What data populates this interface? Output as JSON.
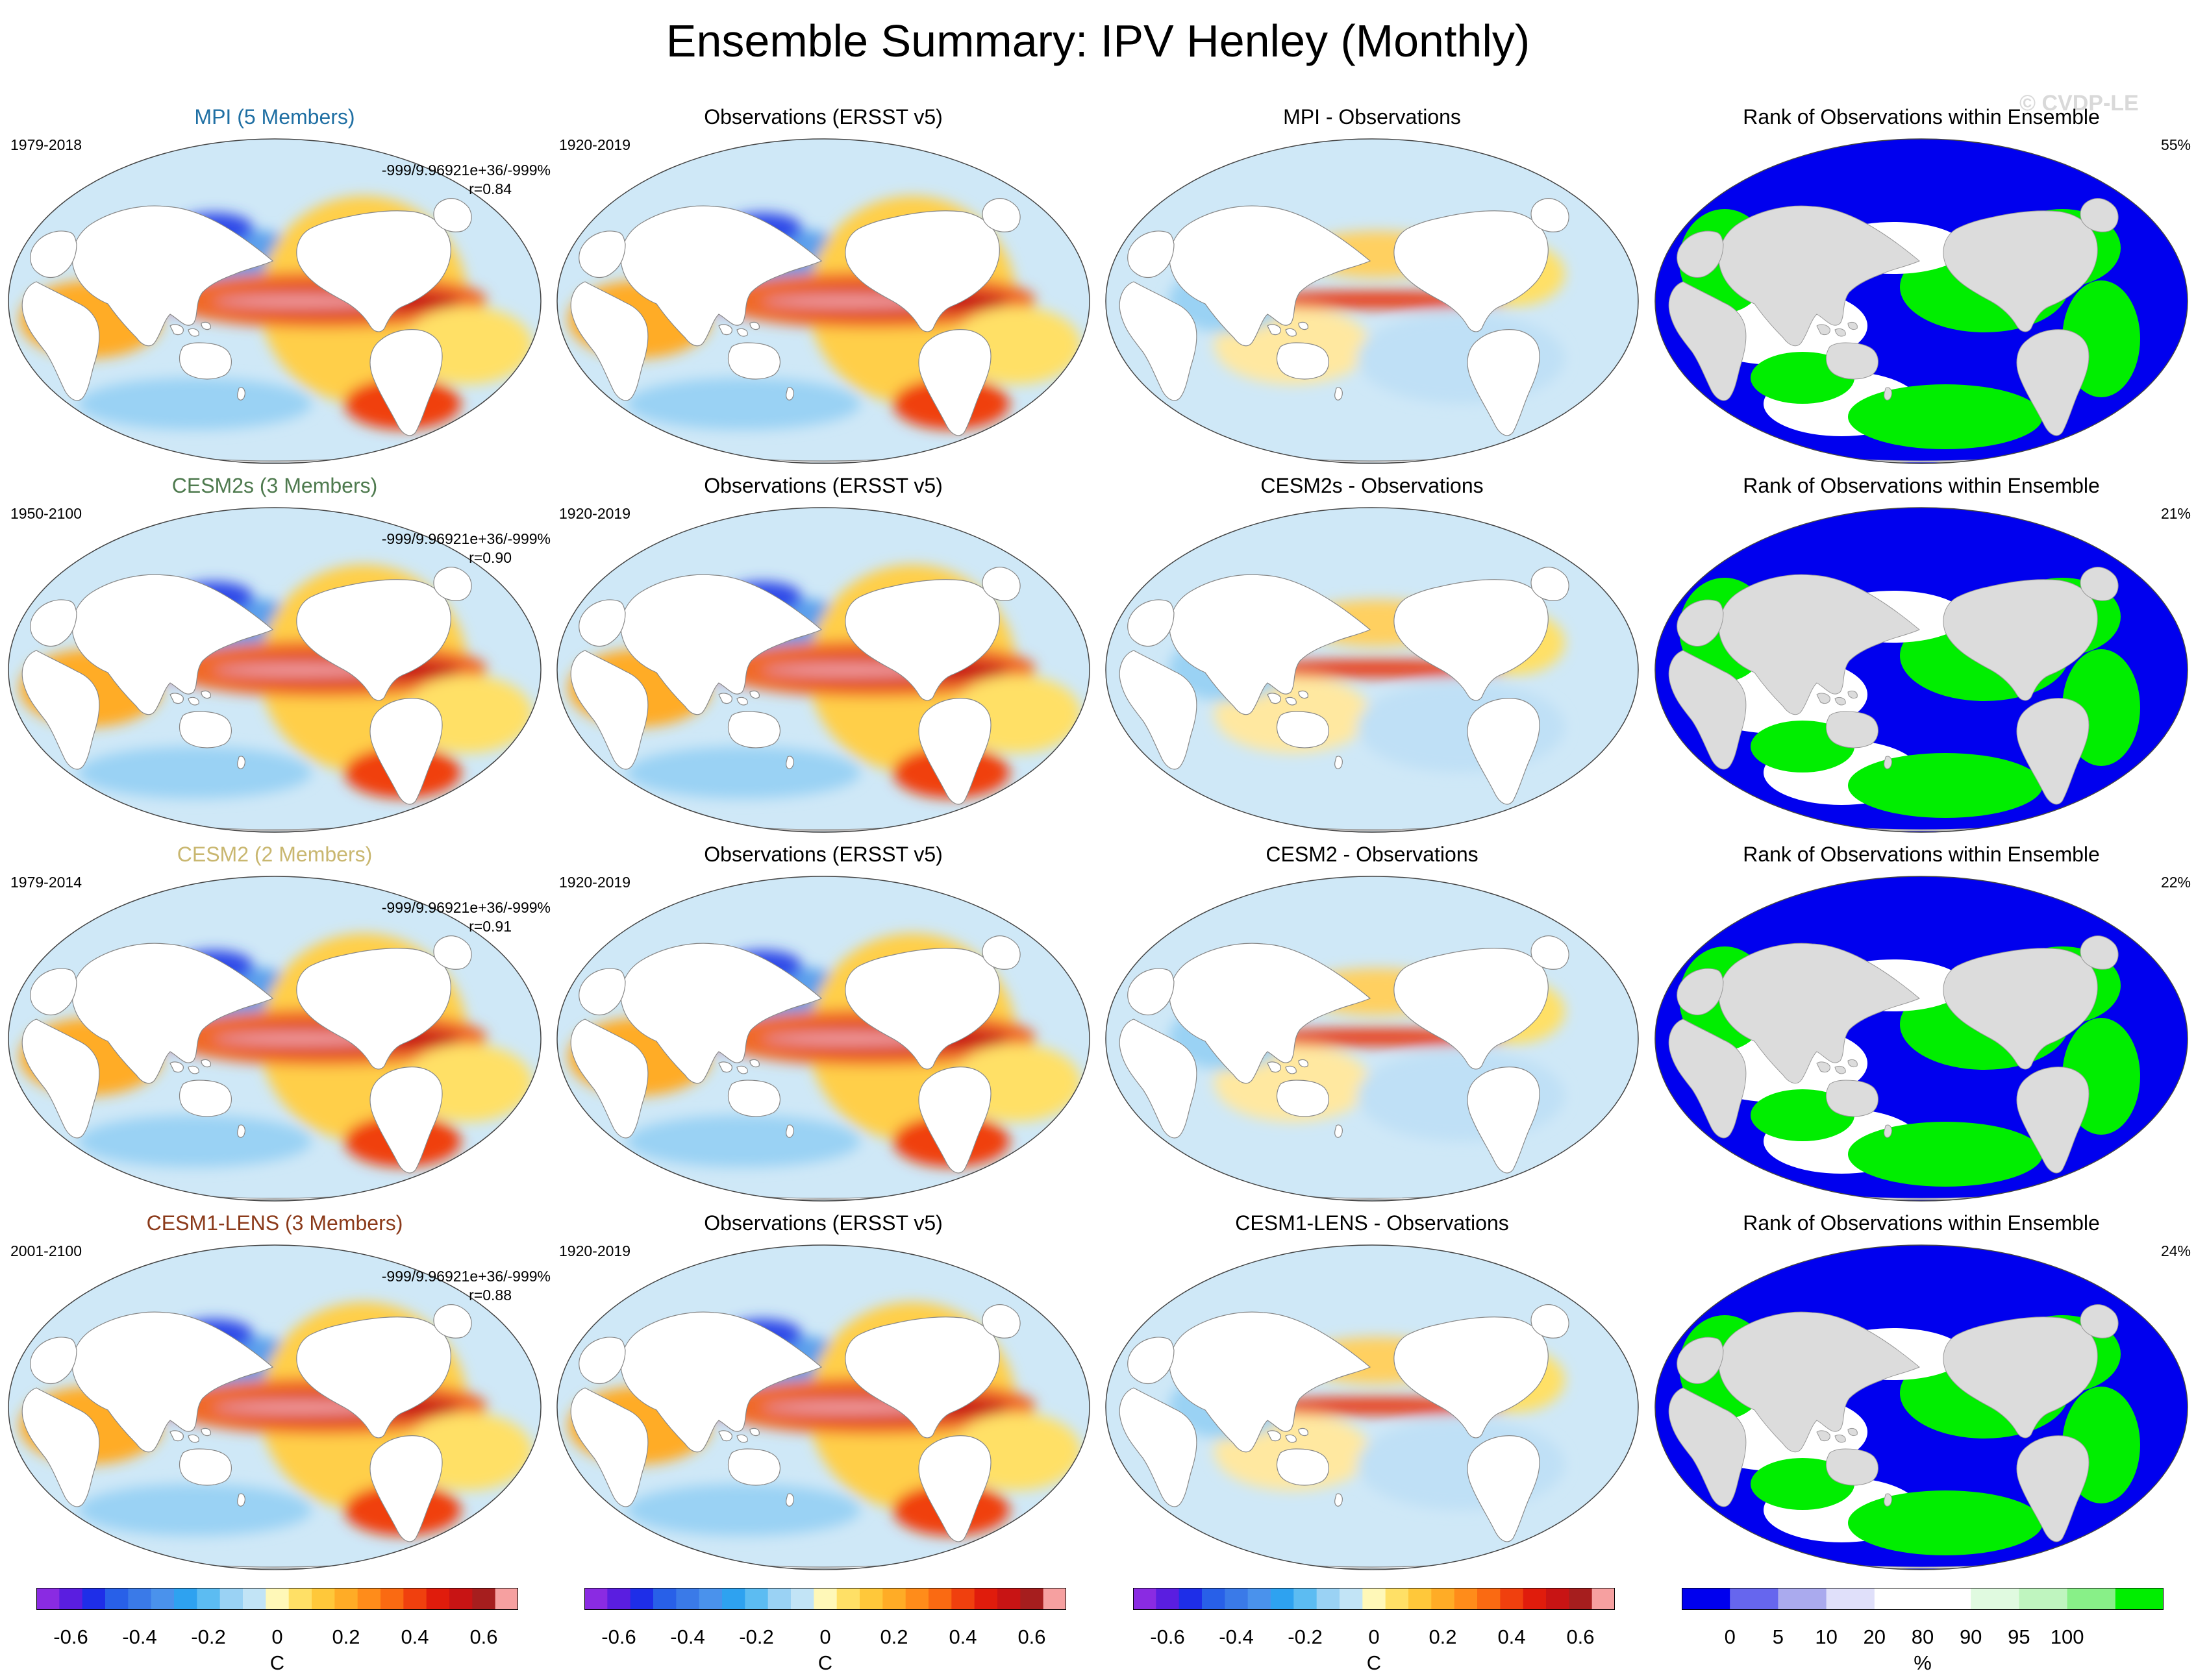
{
  "title": "Ensemble Summary: IPV Henley (Monthly)",
  "watermark": "© CVDP-LE",
  "colors": {
    "mpi": "#1f6fa3",
    "cesm2s": "#4e7a4e",
    "cesm2": "#c9b770",
    "cesm1": "#8b3a1a",
    "ocean_fill": "#cfe8f7",
    "land": "#ffffff",
    "rank_land": "#dcdcdc",
    "rank_blue": "#0000ee",
    "rank_green": "#00ee00"
  },
  "rows": [
    {
      "model": {
        "title": "MPI (5 Members)",
        "title_color": "#1f6fa3",
        "period": "1979-2018",
        "stats_line1": "-999/9.96921e+36/-999%",
        "stats_line2": "r=0.84"
      },
      "obs": {
        "title": "Observations (ERSST v5)",
        "period": "1920-2019"
      },
      "diff": {
        "title": "MPI - Observations"
      },
      "rank": {
        "title": "Rank of Observations within Ensemble",
        "percent": "55%"
      }
    },
    {
      "model": {
        "title": "CESM2s (3 Members)",
        "title_color": "#4e7a4e",
        "period": "1950-2100",
        "stats_line1": "-999/9.96921e+36/-999%",
        "stats_line2": "r=0.90"
      },
      "obs": {
        "title": "Observations (ERSST v5)",
        "period": "1920-2019"
      },
      "diff": {
        "title": "CESM2s - Observations"
      },
      "rank": {
        "title": "Rank of Observations within Ensemble",
        "percent": "21%"
      }
    },
    {
      "model": {
        "title": "CESM2 (2 Members)",
        "title_color": "#c9b770",
        "period": "1979-2014",
        "stats_line1": "-999/9.96921e+36/-999%",
        "stats_line2": "r=0.91"
      },
      "obs": {
        "title": "Observations (ERSST v5)",
        "period": "1920-2019"
      },
      "diff": {
        "title": "CESM2 - Observations"
      },
      "rank": {
        "title": "Rank of Observations within Ensemble",
        "percent": "22%"
      }
    },
    {
      "model": {
        "title": "CESM1-LENS (3 Members)",
        "title_color": "#8b3a1a",
        "period": "2001-2100",
        "stats_line1": "-999/9.96921e+36/-999%",
        "stats_line2": "r=0.88"
      },
      "obs": {
        "title": "Observations (ERSST v5)",
        "period": "1920-2019"
      },
      "diff": {
        "title": "CESM1-LENS - Observations"
      },
      "rank": {
        "title": "Rank of Observations within Ensemble",
        "percent": "24%"
      }
    }
  ],
  "chart_data": {
    "type": "heatmap",
    "projection": "Robinson (Pacific-centered) global maps",
    "panel_layout": "4 rows x 4 columns",
    "columns": [
      "model ensemble mean",
      "observations",
      "model - observations",
      "rank of observations"
    ],
    "colorbars": {
      "temperature": {
        "unit": "C",
        "colors": [
          "#8a2be2",
          "#5a1ee0",
          "#1e2ee8",
          "#2860e8",
          "#3a7ae8",
          "#4a92ec",
          "#2ea2f0",
          "#5cbcf2",
          "#9ad2f4",
          "#c2e4f6",
          "#fff8b8",
          "#ffe066",
          "#ffc83a",
          "#ffac26",
          "#ff8c1a",
          "#fa6a12",
          "#f0400e",
          "#e01c0c",
          "#c81414",
          "#a61e1e",
          "#f6a0a0"
        ],
        "tick_labels": [
          "-0.6",
          "-0.4",
          "-0.2",
          "0",
          "0.2",
          "0.4",
          "0.6"
        ],
        "tick_values": [
          -0.6,
          -0.4,
          -0.2,
          0,
          0.2,
          0.4,
          0.6
        ],
        "range": [
          -0.7,
          0.7
        ]
      },
      "rank": {
        "unit": "%",
        "colors": [
          "#0000ee",
          "#6666ee",
          "#aaaaee",
          "#e0e0fa",
          "#ffffff",
          "#ffffff",
          "#e0fae0",
          "#bff5bf",
          "#88f088",
          "#00ee00"
        ],
        "tick_labels": [
          "0",
          "5",
          "10",
          "20",
          "80",
          "90",
          "95",
          "100"
        ],
        "boundaries": [
          0,
          5,
          10,
          20,
          80,
          90,
          95,
          100
        ]
      }
    }
  }
}
